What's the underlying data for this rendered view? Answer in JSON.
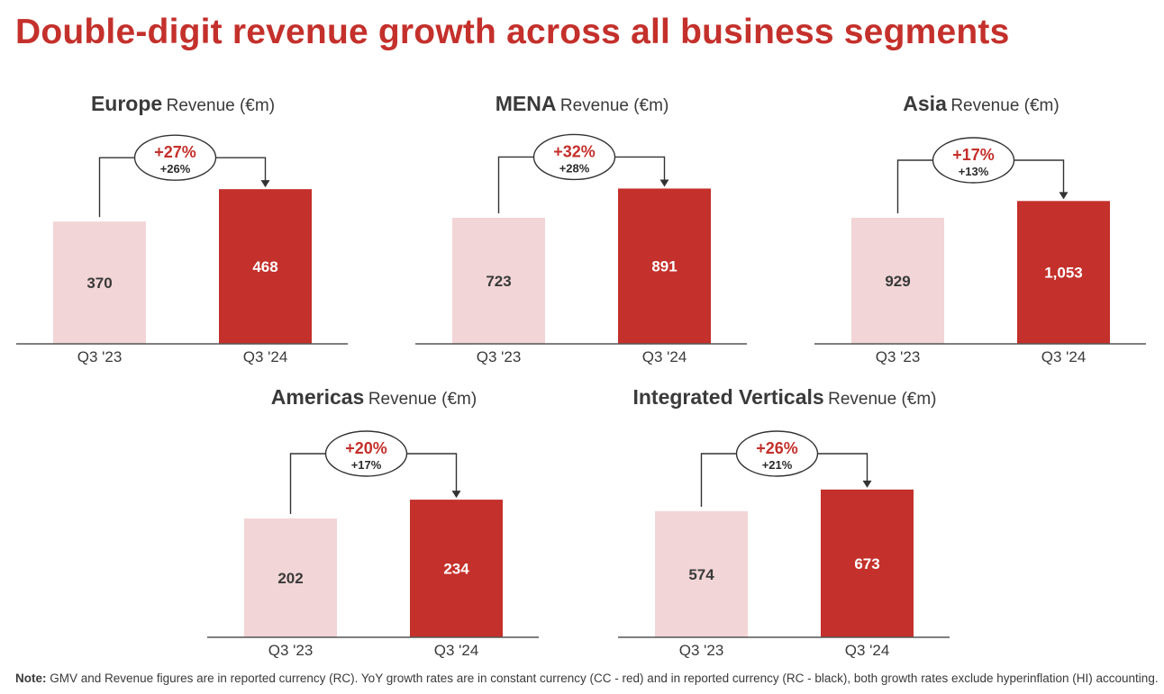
{
  "title": "Double-digit revenue growth across all business segments",
  "colors": {
    "accent": "#c4302b",
    "prior_bar": "#f2d5d6",
    "text": "#2b2b2b",
    "axis": "#555555"
  },
  "note": {
    "label": "Note:",
    "text": "GMV and Revenue figures are in reported currency (RC). YoY growth rates are in constant currency (CC - red) and in reported currency (RC - black), both growth rates exclude hyperinflation (HI) accounting."
  },
  "chart_data": [
    {
      "type": "bar",
      "title": "Europe",
      "unit_label": "Revenue (€m)",
      "categories": [
        "Q3 '23",
        "Q3 '24"
      ],
      "values": [
        370,
        468
      ],
      "value_labels": [
        "370",
        "468"
      ],
      "growth_cc": "+27%",
      "growth_rc": "+26%"
    },
    {
      "type": "bar",
      "title": "MENA",
      "unit_label": "Revenue (€m)",
      "categories": [
        "Q3 '23",
        "Q3 '24"
      ],
      "values": [
        723,
        891
      ],
      "value_labels": [
        "723",
        "891"
      ],
      "growth_cc": "+32%",
      "growth_rc": "+28%"
    },
    {
      "type": "bar",
      "title": "Asia",
      "unit_label": "Revenue (€m)",
      "categories": [
        "Q3 '23",
        "Q3 '24"
      ],
      "values": [
        929,
        1053
      ],
      "value_labels": [
        "929",
        "1,053"
      ],
      "growth_cc": "+17%",
      "growth_rc": "+13%"
    },
    {
      "type": "bar",
      "title": "Americas",
      "unit_label": "Revenue (€m)",
      "categories": [
        "Q3 '23",
        "Q3 '24"
      ],
      "values": [
        202,
        234
      ],
      "value_labels": [
        "202",
        "234"
      ],
      "growth_cc": "+20%",
      "growth_rc": "+17%"
    },
    {
      "type": "bar",
      "title": "Integrated Verticals",
      "unit_label": "Revenue (€m)",
      "categories": [
        "Q3 '23",
        "Q3 '24"
      ],
      "values": [
        574,
        673
      ],
      "value_labels": [
        "574",
        "673"
      ],
      "growth_cc": "+26%",
      "growth_rc": "+21%"
    }
  ]
}
